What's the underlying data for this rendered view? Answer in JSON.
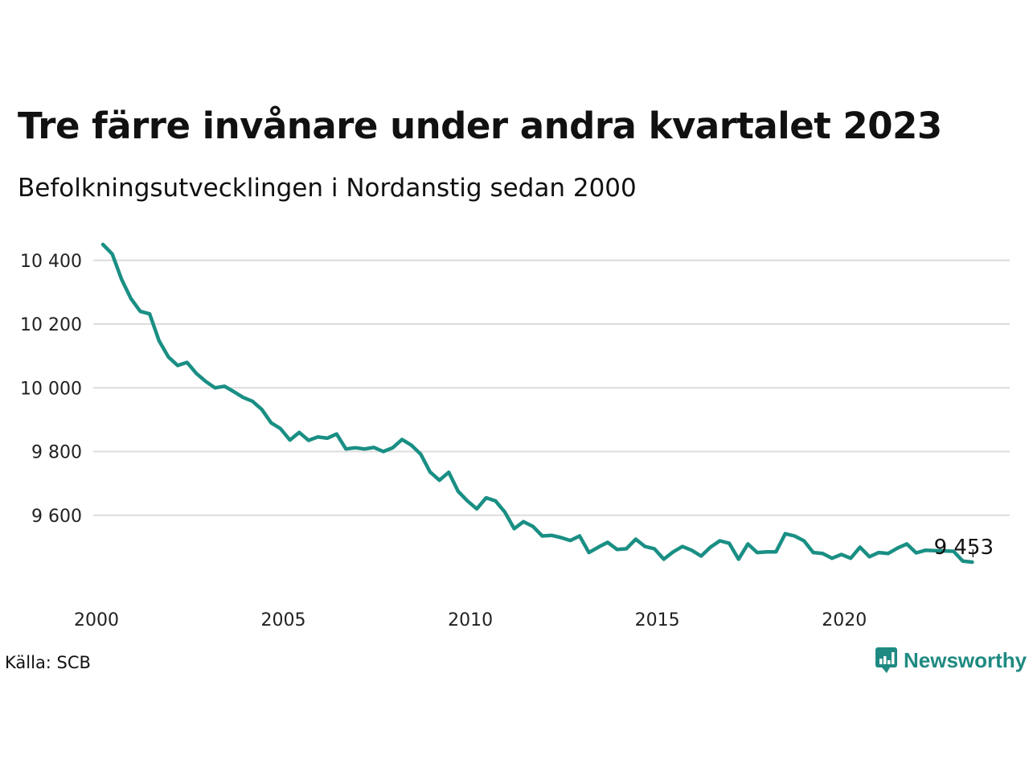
{
  "title": "Tre färre invånare under andra kvartalet 2023",
  "subtitle": "Befolkningsutvecklingen i Nordanstig sedan 2000",
  "source": "Källa: SCB",
  "brand": {
    "name": "Newsworthy",
    "icon": "newsworthy-logo-icon",
    "color": "#1f8a82"
  },
  "chart_data": {
    "type": "line",
    "title": "Tre färre invånare under andra kvartalet 2023",
    "subtitle": "Befolkningsutvecklingen i Nordanstig sedan 2000",
    "xlabel": "",
    "ylabel": "",
    "x_ticks": [
      2000,
      2005,
      2010,
      2015,
      2020
    ],
    "y_ticks": [
      9600,
      9800,
      10000,
      10200,
      10400
    ],
    "y_tick_labels": [
      "9 600",
      "9 800",
      "10 000",
      "10 200",
      "10 400"
    ],
    "grid": true,
    "line_color": "#1a8f84",
    "ylim": [
      9400,
      10460
    ],
    "xlim": [
      2000,
      2023.5
    ],
    "series": [
      {
        "x": [
          2000.0,
          2000.25,
          2000.5,
          2000.75,
          2001.0,
          2001.25,
          2001.5,
          2001.75,
          2002.0,
          2002.25,
          2002.5,
          2002.75,
          2003.0,
          2003.25,
          2003.5,
          2003.75,
          2004.0,
          2004.25,
          2004.5,
          2004.75,
          2005.0,
          2005.25,
          2005.5,
          2005.75,
          2006.0,
          2006.25,
          2006.5,
          2006.75,
          2007.0,
          2007.25,
          2007.5,
          2007.75,
          2008.0,
          2008.25,
          2008.5,
          2008.75,
          2009.0,
          2009.25,
          2009.5,
          2009.75,
          2010.0,
          2010.25,
          2010.5,
          2010.75,
          2011.0,
          2011.25,
          2011.5,
          2011.75,
          2012.0,
          2012.25,
          2012.5,
          2012.75,
          2013.0,
          2013.25,
          2013.5,
          2013.75,
          2014.0,
          2014.25,
          2014.5,
          2014.75,
          2015.0,
          2015.25,
          2015.5,
          2015.75,
          2016.0,
          2016.25,
          2016.5,
          2016.75,
          2017.0,
          2017.25,
          2017.5,
          2017.75,
          2018.0,
          2018.25,
          2018.5,
          2018.75,
          2019.0,
          2019.25,
          2019.5,
          2019.75,
          2020.0,
          2020.25,
          2020.5,
          2020.75,
          2021.0,
          2021.25,
          2021.5,
          2021.75,
          2022.0,
          2022.25,
          2022.5,
          2022.75,
          2023.0,
          2023.25
        ],
        "values": [
          10450,
          10420,
          10340,
          10280,
          10240,
          10232,
          10148,
          10097,
          10070,
          10080,
          10045,
          10020,
          10000,
          10005,
          9988,
          9970,
          9958,
          9932,
          9890,
          9872,
          9836,
          9860,
          9835,
          9846,
          9842,
          9855,
          9808,
          9812,
          9808,
          9813,
          9800,
          9812,
          9838,
          9820,
          9792,
          9736,
          9710,
          9735,
          9675,
          9645,
          9620,
          9655,
          9645,
          9610,
          9558,
          9580,
          9565,
          9535,
          9537,
          9530,
          9521,
          9535,
          9483,
          9500,
          9515,
          9493,
          9495,
          9525,
          9502,
          9495,
          9462,
          9485,
          9502,
          9490,
          9472,
          9500,
          9520,
          9512,
          9462,
          9510,
          9483,
          9485,
          9485,
          9542,
          9535,
          9520,
          9483,
          9480,
          9465,
          9477,
          9465,
          9500,
          9470,
          9483,
          9480,
          9497,
          9510,
          9482,
          9490,
          9489,
          9488,
          9487,
          9456,
          9453
        ]
      }
    ],
    "annotations": [
      {
        "x": 2023.25,
        "value": 9453,
        "text": "9 453"
      }
    ]
  }
}
